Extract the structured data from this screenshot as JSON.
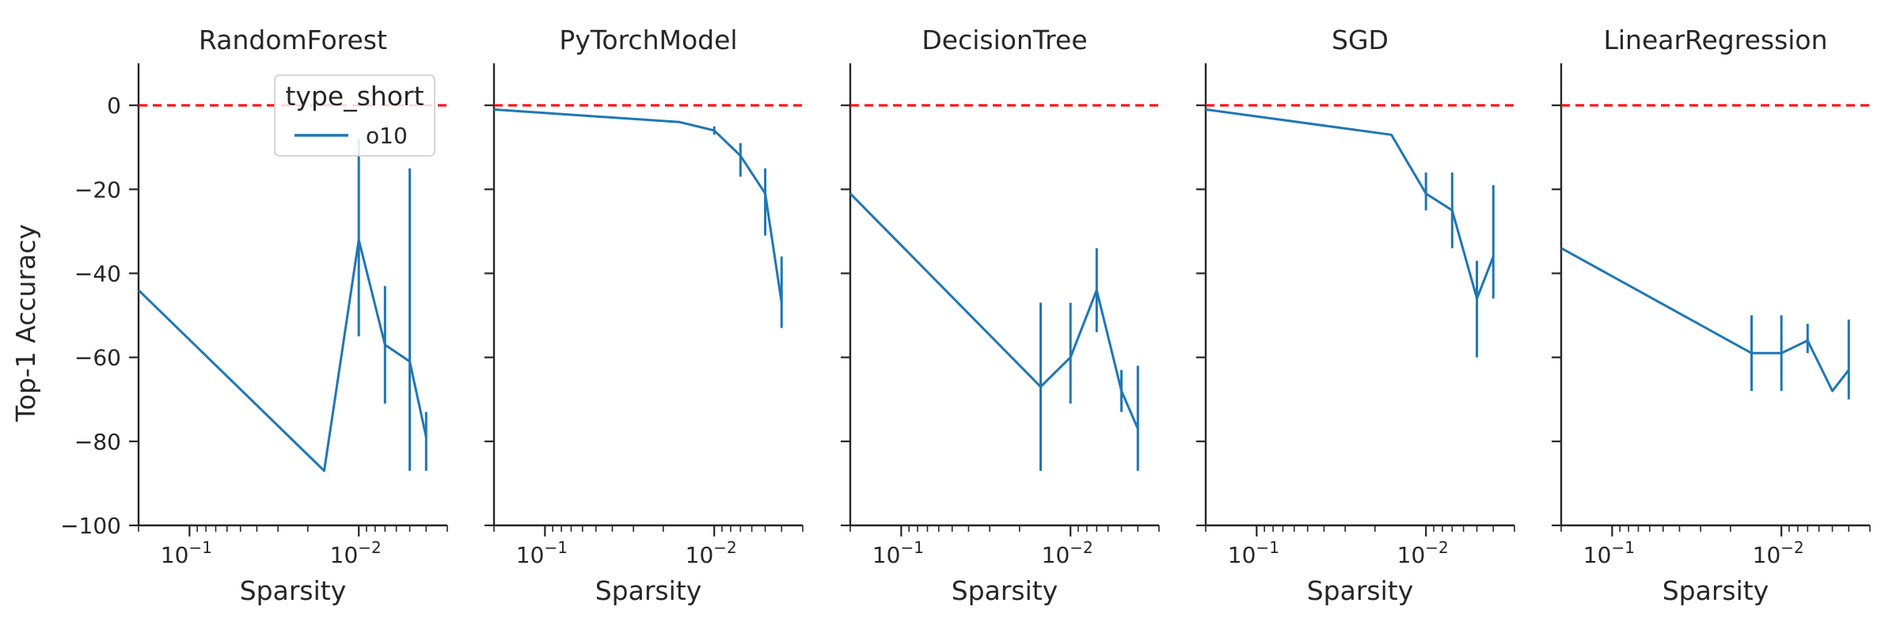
{
  "figure": {
    "ylabel": "Top-1 Accuracy",
    "xlabel": "Sparsity"
  },
  "legend": {
    "title": "type_short",
    "items": [
      {
        "label": "o10",
        "color": "#1f77b4"
      }
    ]
  },
  "colors": {
    "series": "#1f77b4",
    "reference_line": "#ff0000",
    "axis": "#262626"
  },
  "chart_data": [
    {
      "type": "line",
      "title": "RandomForest",
      "xlabel": "Sparsity",
      "ylabel": "Top-1 Accuracy",
      "x_scale": "log",
      "x_inverted": true,
      "xlim": [
        0.2,
        0.003
      ],
      "ylim": [
        -100,
        10
      ],
      "x_tick_labels": [
        "10^-1",
        "10^-2"
      ],
      "y_ticks": [
        0,
        -20,
        -40,
        -60,
        -80,
        -100
      ],
      "reference_line_y": 0,
      "series": [
        {
          "name": "o10",
          "x": [
            0.2,
            0.016,
            0.01,
            0.007,
            0.005,
            0.004
          ],
          "y": [
            -44,
            -87,
            -32,
            -57,
            -61,
            -79
          ],
          "err_low": [
            null,
            null,
            -55,
            -71,
            -87,
            -87
          ],
          "err_high": [
            null,
            null,
            -8,
            -43,
            -15,
            -73
          ]
        }
      ]
    },
    {
      "type": "line",
      "title": "PyTorchModel",
      "xlabel": "Sparsity",
      "x_scale": "log",
      "x_inverted": true,
      "xlim": [
        0.2,
        0.003
      ],
      "ylim": [
        -100,
        10
      ],
      "x_tick_labels": [
        "10^-1",
        "10^-2"
      ],
      "reference_line_y": 0,
      "series": [
        {
          "name": "o10",
          "x": [
            0.2,
            0.016,
            0.01,
            0.007,
            0.005,
            0.004
          ],
          "y": [
            -1,
            -4,
            -6,
            -12,
            -21,
            -47
          ],
          "err_low": [
            null,
            null,
            -7,
            -17,
            -31,
            -53
          ],
          "err_high": [
            null,
            null,
            -5,
            -9,
            -15,
            -36
          ]
        }
      ]
    },
    {
      "type": "line",
      "title": "DecisionTree",
      "xlabel": "Sparsity",
      "x_scale": "log",
      "x_inverted": true,
      "xlim": [
        0.2,
        0.003
      ],
      "ylim": [
        -100,
        10
      ],
      "x_tick_labels": [
        "10^-1",
        "10^-2"
      ],
      "reference_line_y": 0,
      "series": [
        {
          "name": "o10",
          "x": [
            0.2,
            0.015,
            0.01,
            0.007,
            0.005,
            0.004
          ],
          "y": [
            -21,
            -67,
            -60,
            -44,
            -68,
            -77
          ],
          "err_low": [
            null,
            -87,
            -71,
            -54,
            -73,
            -87
          ],
          "err_high": [
            null,
            -47,
            -47,
            -34,
            -63,
            -62
          ]
        }
      ]
    },
    {
      "type": "line",
      "title": "SGD",
      "xlabel": "Sparsity",
      "x_scale": "log",
      "x_inverted": true,
      "xlim": [
        0.2,
        0.003
      ],
      "ylim": [
        -100,
        10
      ],
      "x_tick_labels": [
        "10^-1",
        "10^-2"
      ],
      "reference_line_y": 0,
      "series": [
        {
          "name": "o10",
          "x": [
            0.2,
            0.016,
            0.01,
            0.007,
            0.005,
            0.004
          ],
          "y": [
            -1,
            -7,
            -21,
            -25,
            -46,
            -36
          ],
          "err_low": [
            null,
            null,
            -25,
            -34,
            -60,
            -46
          ],
          "err_high": [
            null,
            null,
            -16,
            -16,
            -37,
            -19
          ]
        }
      ]
    },
    {
      "type": "line",
      "title": "LinearRegression",
      "xlabel": "Sparsity",
      "x_scale": "log",
      "x_inverted": true,
      "xlim": [
        0.2,
        0.003
      ],
      "ylim": [
        -100,
        10
      ],
      "x_tick_labels": [
        "10^-1",
        "10^-2"
      ],
      "reference_line_y": 0,
      "series": [
        {
          "name": "o10",
          "x": [
            0.2,
            0.015,
            0.01,
            0.007,
            0.005,
            0.004
          ],
          "y": [
            -34,
            -59,
            -59,
            -56,
            -68,
            -63
          ],
          "err_low": [
            null,
            -68,
            -68,
            -59,
            null,
            -70
          ],
          "err_high": [
            null,
            -50,
            -50,
            -52,
            null,
            -51
          ]
        }
      ]
    }
  ]
}
